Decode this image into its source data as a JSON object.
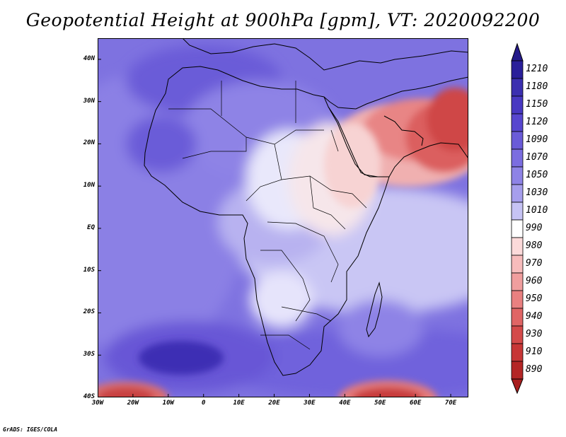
{
  "title": "Geopotential Height at 900hPa [gpm], VT: 2020092200",
  "credit": "GrADS: IGES/COLA",
  "map": {
    "variable": "Geopotential Height",
    "level": "900hPa",
    "units": "gpm",
    "valid_time": "2020092200",
    "region": "Africa / Middle East",
    "lon_range": [
      -30,
      75
    ],
    "lat_range": [
      -40,
      45
    ],
    "lon_ticks": [
      {
        "value": -30,
        "label": "30W"
      },
      {
        "value": -20,
        "label": "20W"
      },
      {
        "value": -10,
        "label": "10W"
      },
      {
        "value": 0,
        "label": "0"
      },
      {
        "value": 10,
        "label": "10E"
      },
      {
        "value": 20,
        "label": "20E"
      },
      {
        "value": 30,
        "label": "30E"
      },
      {
        "value": 40,
        "label": "40E"
      },
      {
        "value": 50,
        "label": "50E"
      },
      {
        "value": 60,
        "label": "60E"
      },
      {
        "value": 70,
        "label": "70E"
      }
    ],
    "lat_ticks": [
      {
        "value": 40,
        "label": "40N"
      },
      {
        "value": 30,
        "label": "30N"
      },
      {
        "value": 20,
        "label": "20N"
      },
      {
        "value": 10,
        "label": "10N"
      },
      {
        "value": 0,
        "label": "EQ"
      },
      {
        "value": -10,
        "label": "10S"
      },
      {
        "value": -20,
        "label": "20S"
      },
      {
        "value": -30,
        "label": "30S"
      },
      {
        "value": -40,
        "label": "40S"
      }
    ]
  },
  "colorbar": {
    "levels": [
      "1210",
      "1180",
      "1150",
      "1120",
      "1090",
      "1070",
      "1050",
      "1030",
      "1010",
      "990",
      "980",
      "970",
      "960",
      "950",
      "940",
      "930",
      "910",
      "890"
    ],
    "colors": [
      "#2a1f9a",
      "#3b2fb0",
      "#4838c2",
      "#5746cf",
      "#6a5bd8",
      "#7b6de0",
      "#8e83e6",
      "#a69eec",
      "#c6c3f4",
      "#ffffff",
      "#fcdada",
      "#f7bcbc",
      "#f09e9e",
      "#e98080",
      "#e06565",
      "#d44a4a",
      "#c73636",
      "#b42626"
    ]
  }
}
